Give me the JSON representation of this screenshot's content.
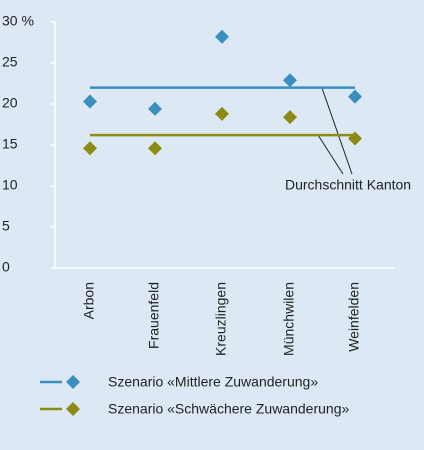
{
  "chart_data": {
    "type": "scatter",
    "categories": [
      "Arbon",
      "Frauenfeld",
      "Kreuzlingen",
      "Münchwilen",
      "Weinfelden"
    ],
    "series": [
      {
        "name": "Szenario «Mittlere Zuwanderung»",
        "color": "#3a8fc0",
        "values": [
          20.3,
          19.4,
          28.2,
          22.9,
          20.9
        ],
        "average": 22.0
      },
      {
        "name": "Szenario «Schwächere Zuwanderung»",
        "color": "#8c8a12",
        "values": [
          14.6,
          14.6,
          18.8,
          18.4,
          15.8
        ],
        "average": 16.2
      }
    ],
    "annotation": "Durchschnitt Kanton",
    "ylim": [
      0,
      30
    ],
    "yticks": [
      0,
      5,
      10,
      15,
      20,
      25,
      {
        "value": 30,
        "label": "30 %"
      }
    ],
    "grid": false
  }
}
